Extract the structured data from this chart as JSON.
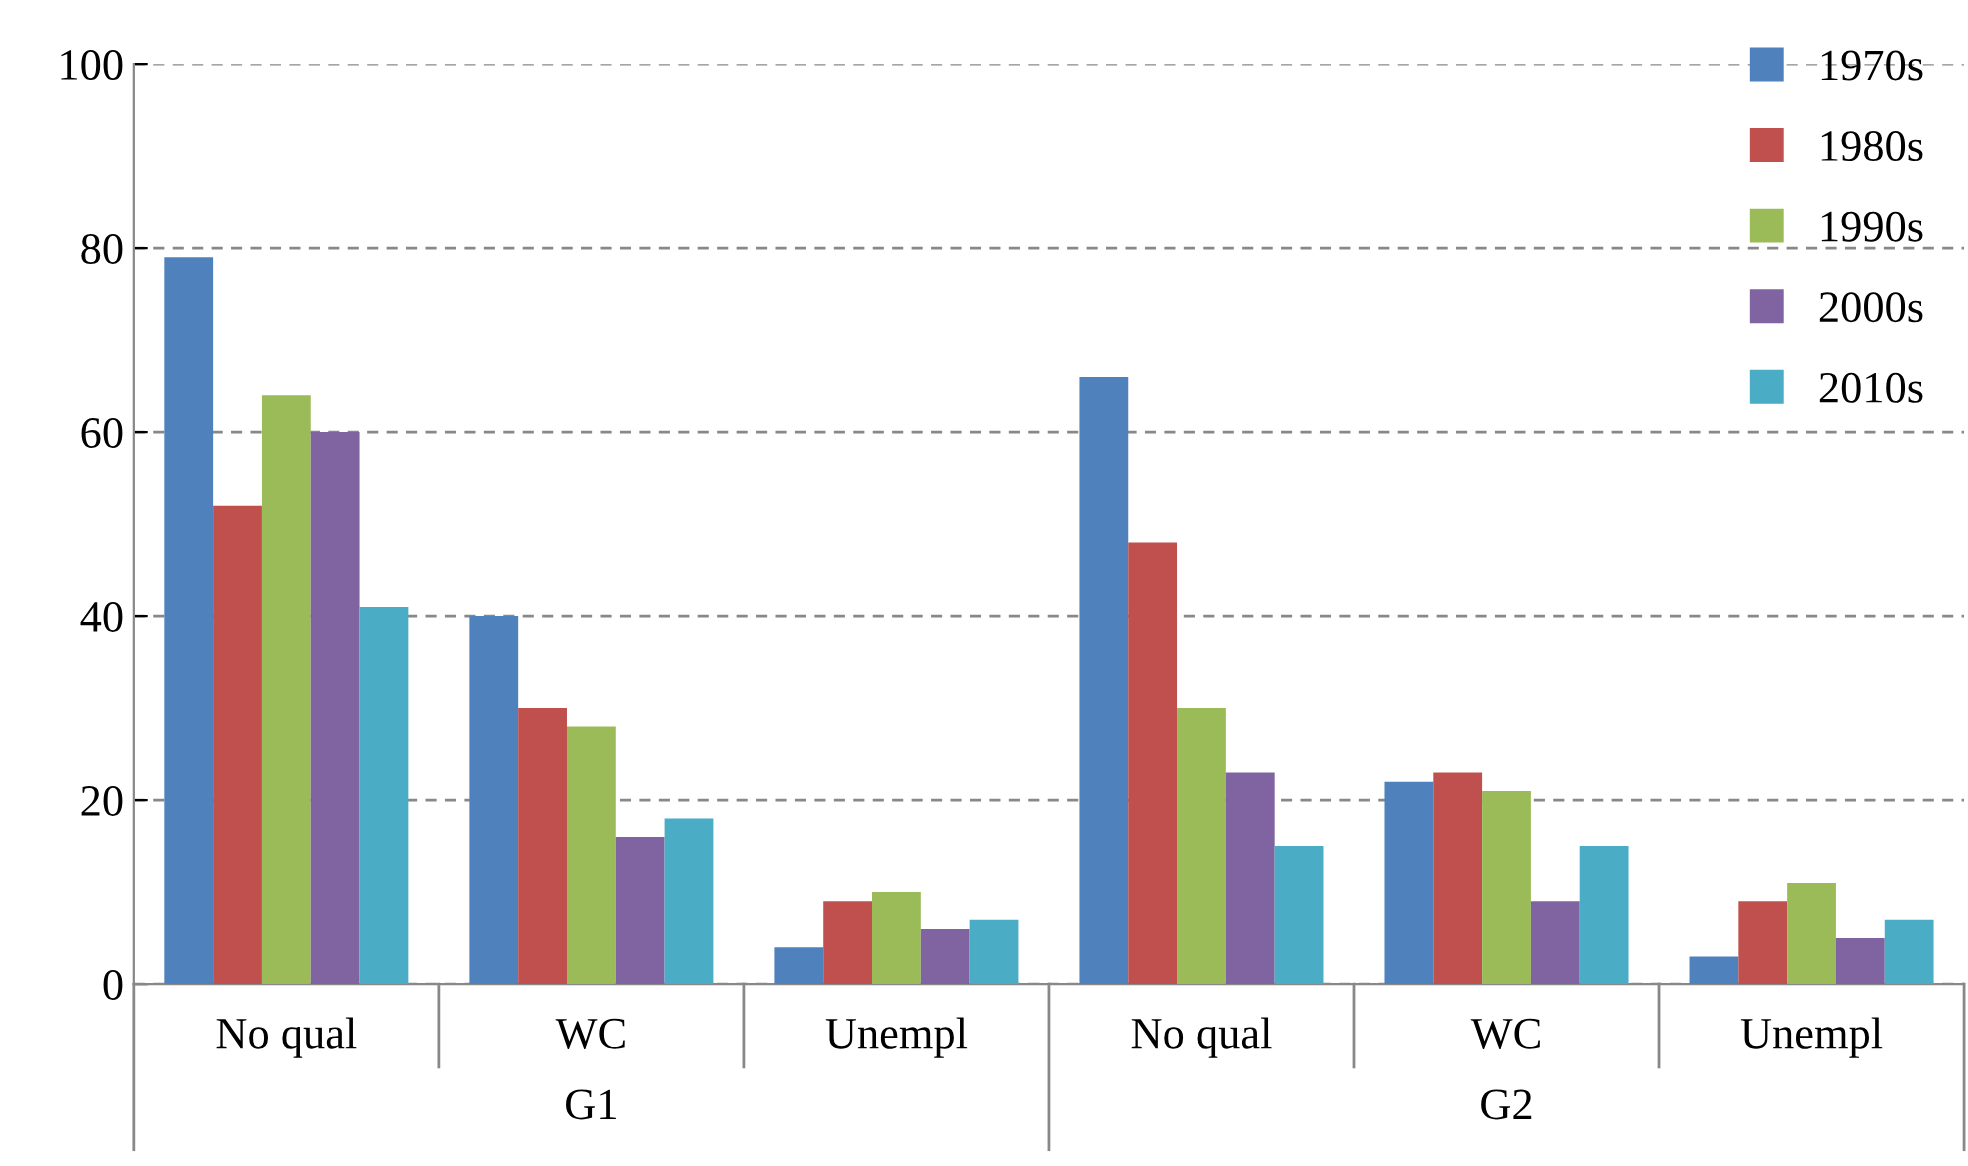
{
  "chart_data": {
    "type": "bar",
    "categories": [
      "No qual",
      "WC",
      "Unempl",
      "No qual",
      "WC",
      "Unempl"
    ],
    "series": [
      {
        "name": "1970s",
        "color": "#4f81bd",
        "values": [
          79,
          40,
          4,
          66,
          22,
          3
        ]
      },
      {
        "name": "1980s",
        "color": "#c0504d",
        "values": [
          52,
          30,
          9,
          48,
          23,
          9
        ]
      },
      {
        "name": "1990s",
        "color": "#9bbb59",
        "values": [
          64,
          28,
          10,
          30,
          21,
          11
        ]
      },
      {
        "name": "2000s",
        "color": "#8064a2",
        "values": [
          60,
          16,
          6,
          23,
          9,
          5
        ]
      },
      {
        "name": "2010s",
        "color": "#4bacc6",
        "values": [
          41,
          18,
          7,
          15,
          15,
          7
        ]
      }
    ],
    "annotations": [
      "G1",
      "G2"
    ],
    "ylim": [
      0,
      100
    ],
    "yticks": [
      0,
      20,
      40,
      60,
      80,
      100
    ],
    "grid": "y",
    "legend": "top right"
  }
}
